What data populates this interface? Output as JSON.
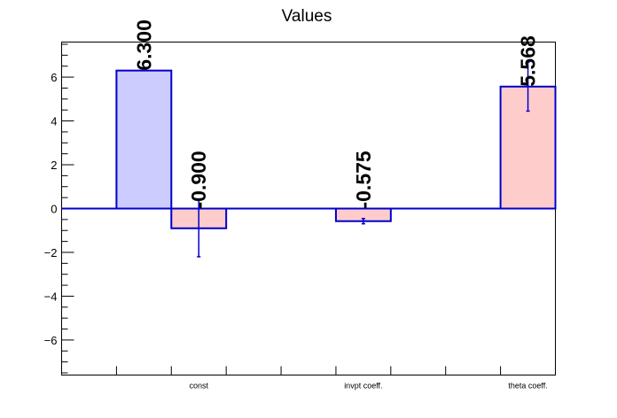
{
  "chart_data": {
    "type": "bar",
    "title": "Values",
    "xlabel": "",
    "ylabel": "",
    "ylim": [
      -7.6,
      7.6
    ],
    "yticks": [
      -6,
      -4,
      -2,
      0,
      2,
      4,
      6
    ],
    "ytick_labels": [
      "−6",
      "−4",
      "−2",
      "0",
      "2",
      "4",
      "6"
    ],
    "legend": "none",
    "grid": false,
    "colors": {
      "bar_fill_first": "#ccccff",
      "bar_fill_rest": "#ffcccc",
      "bar_stroke": "#0000cc",
      "zero_line": "#0000cc",
      "axis": "#000000"
    },
    "x_slots": 9,
    "bars": [
      {
        "slot": 1,
        "value": 6.3,
        "error": 0.0,
        "label": "6.300"
      },
      {
        "slot": 2,
        "value": -0.9,
        "error": 1.3,
        "label": "-0.900"
      },
      {
        "slot": 5,
        "value": -0.575,
        "error": 0.12,
        "label": "-0.575"
      },
      {
        "slot": 8,
        "value": 5.568,
        "error": 1.12,
        "label": "5.568"
      }
    ],
    "categories": [
      {
        "name": "const",
        "slot_center": 2.5
      },
      {
        "name": "invpt coeff.",
        "slot_center": 5.5
      },
      {
        "name": "theta coeff.",
        "slot_center": 8.5
      }
    ]
  }
}
